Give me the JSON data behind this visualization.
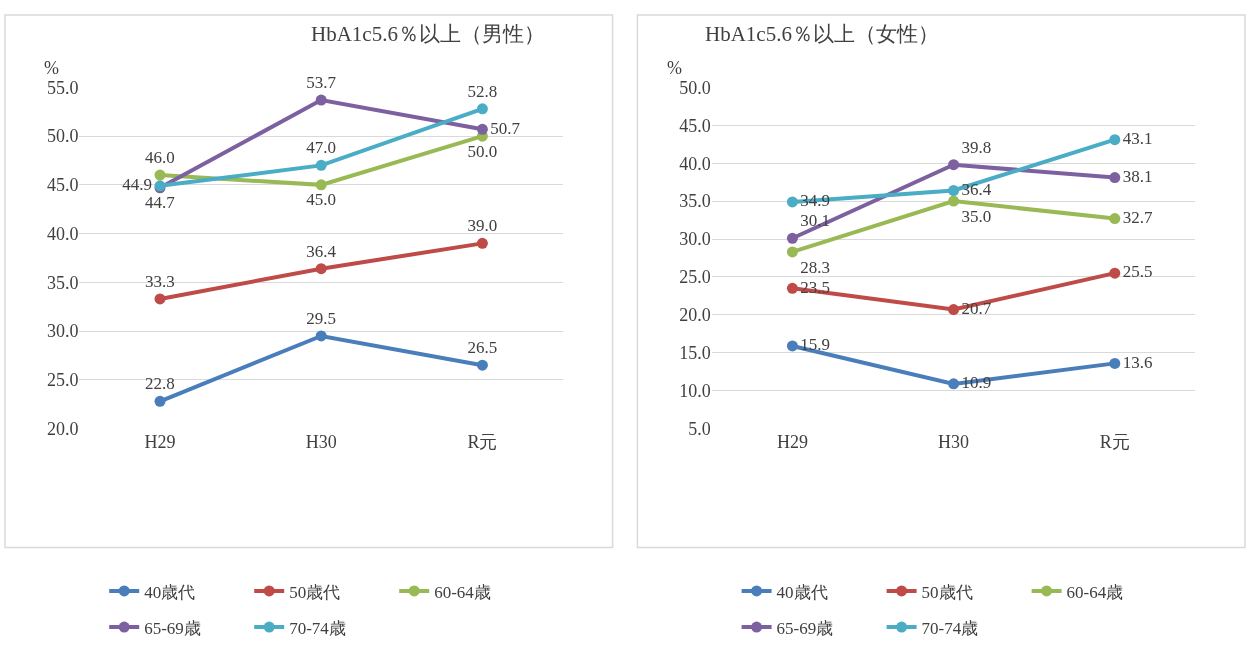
{
  "chart_data": [
    {
      "type": "line",
      "title": "HbA1c5.6％以上（男性）",
      "ylabel": "%",
      "categories": [
        "H29",
        "H30",
        "R元"
      ],
      "ylim": [
        20,
        55
      ],
      "yticks": [
        {
          "value": 20,
          "label": "20.0"
        },
        {
          "value": 25,
          "label": "25.0"
        },
        {
          "value": 30,
          "label": "30.0"
        },
        {
          "value": 35,
          "label": "35.0"
        },
        {
          "value": 40,
          "label": "40.0"
        },
        {
          "value": 45,
          "label": "45.0"
        },
        {
          "value": 50,
          "label": "50.0"
        },
        {
          "value": 55,
          "label": "55.0"
        }
      ],
      "grid": "y",
      "legend": "bottom",
      "marker": "circle",
      "line_style": "solid",
      "series": [
        {
          "name": "40歳代",
          "color": "#4a7ebb",
          "values": [
            22.8,
            29.5,
            26.5
          ],
          "value_labels": [
            "22.8",
            "29.5",
            "26.5"
          ]
        },
        {
          "name": "50歳代",
          "color": "#be4b48",
          "values": [
            33.3,
            36.4,
            39.0
          ],
          "value_labels": [
            "33.3",
            "36.4",
            "39.0"
          ]
        },
        {
          "name": "60-64歳",
          "color": "#98b954",
          "values": [
            46.0,
            45.0,
            50.0
          ],
          "value_labels": [
            "46.0",
            "45.0",
            "50.0"
          ]
        },
        {
          "name": "65-69歳",
          "color": "#7d60a0",
          "values": [
            44.7,
            53.7,
            50.7
          ],
          "value_labels": [
            "44.7",
            "53.7",
            "50.7"
          ]
        },
        {
          "name": "70-74歳",
          "color": "#4bacc6",
          "values": [
            44.9,
            47.0,
            52.8
          ],
          "value_labels": [
            "44.9",
            "47.0",
            "52.8"
          ]
        }
      ]
    },
    {
      "type": "line",
      "title": "HbA1c5.6％以上（女性）",
      "ylabel": "%",
      "categories": [
        "H29",
        "H30",
        "R元"
      ],
      "ylim": [
        5,
        50
      ],
      "yticks": [
        {
          "value": 5,
          "label": "5.0"
        },
        {
          "value": 10,
          "label": "10.0"
        },
        {
          "value": 15,
          "label": "15.0"
        },
        {
          "value": 20,
          "label": "20.0"
        },
        {
          "value": 25,
          "label": "25.0"
        },
        {
          "value": 30,
          "label": "30.0"
        },
        {
          "value": 35,
          "label": "35.0"
        },
        {
          "value": 40,
          "label": "40.0"
        },
        {
          "value": 45,
          "label": "45.0"
        },
        {
          "value": 50,
          "label": "50.0"
        }
      ],
      "grid": "y",
      "legend": "bottom",
      "marker": "circle",
      "line_style": "solid",
      "series": [
        {
          "name": "40歳代",
          "color": "#4a7ebb",
          "values": [
            15.9,
            10.9,
            13.6
          ],
          "value_labels": [
            "15.9",
            "10.9",
            "13.6"
          ]
        },
        {
          "name": "50歳代",
          "color": "#be4b48",
          "values": [
            23.5,
            20.7,
            25.5
          ],
          "value_labels": [
            "23.5",
            "20.7",
            "25.5"
          ]
        },
        {
          "name": "60-64歳",
          "color": "#98b954",
          "values": [
            28.3,
            35.0,
            32.7
          ],
          "value_labels": [
            "28.3",
            "35.0",
            "32.7"
          ]
        },
        {
          "name": "65-69歳",
          "color": "#7d60a0",
          "values": [
            30.1,
            39.8,
            38.1
          ],
          "value_labels": [
            "30.1",
            "39.8",
            "38.1"
          ]
        },
        {
          "name": "70-74歳",
          "color": "#4bacc6",
          "values": [
            34.9,
            36.4,
            43.1
          ],
          "value_labels": [
            "34.9",
            "36.4",
            "43.1"
          ]
        }
      ]
    }
  ]
}
